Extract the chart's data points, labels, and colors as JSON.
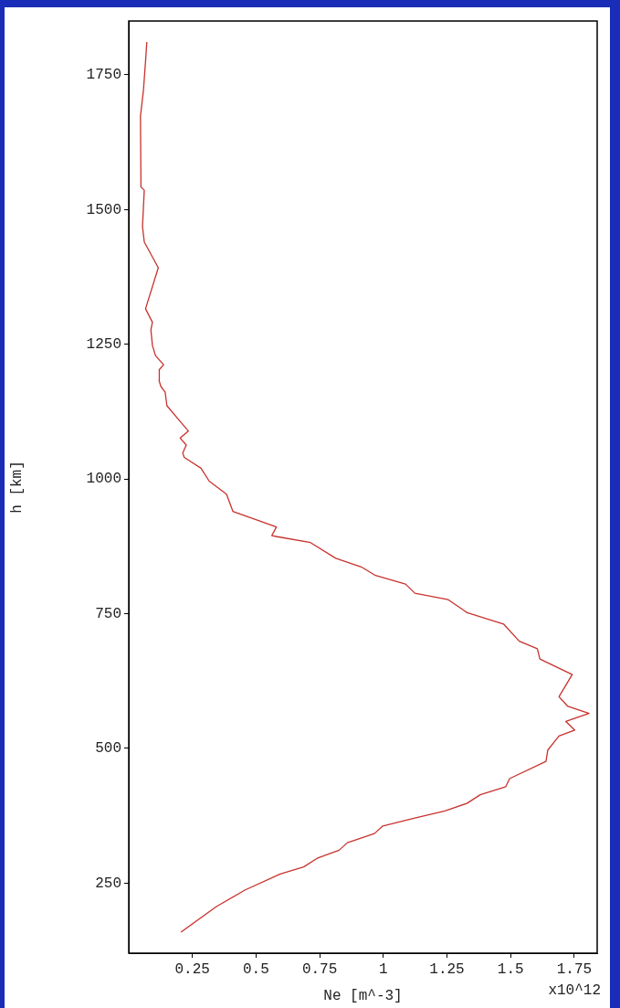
{
  "chart_data": {
    "type": "line",
    "xlabel": "Ne [m^-3]",
    "ylabel": "h [km]",
    "annotations": [
      "x10^12"
    ],
    "xlim": [
      0,
      1.84
    ],
    "xticks": [
      {
        "value": 0.25,
        "label": "0.25"
      },
      {
        "value": 0.5,
        "label": "0.5"
      },
      {
        "value": 0.75,
        "label": "0.75"
      },
      1,
      {
        "value": 1.25,
        "label": "1.25"
      },
      {
        "value": 1.5,
        "label": "1.5"
      },
      {
        "value": 1.75,
        "label": "1.75"
      }
    ],
    "ylim": [
      120,
      1850
    ],
    "yticks": [
      250,
      500,
      750,
      1000,
      1250,
      1500,
      1750
    ],
    "series": [
      {
        "color": "#c8322d",
        "x": [
          0.205,
          0.343,
          0.456,
          0.595,
          0.687,
          0.74,
          0.826,
          0.859,
          0.965,
          0.998,
          1.124,
          1.242,
          1.328,
          1.381,
          1.481,
          1.496,
          1.639,
          1.646,
          1.69,
          1.752,
          1.717,
          1.808,
          1.725,
          1.69,
          1.742,
          1.615,
          1.605,
          1.534,
          1.472,
          1.329,
          1.255,
          1.124,
          1.087,
          0.969,
          0.913,
          0.813,
          0.714,
          0.583,
          0.562,
          0.58,
          0.409,
          0.384,
          0.316,
          0.284,
          0.218,
          0.212,
          0.226,
          0.202,
          0.234,
          0.202,
          0.15,
          0.143,
          0.126,
          0.119,
          0.12,
          0.137,
          0.105,
          0.093,
          0.087,
          0.093,
          0.066,
          0.116,
          0.061,
          0.054,
          0.061,
          0.048,
          0.046,
          0.058,
          0.067,
          0.071
        ],
        "values": [
          159,
          206,
          237,
          267,
          280,
          296,
          311,
          325,
          342,
          356,
          371,
          384,
          398,
          414,
          429,
          444,
          476,
          497,
          523,
          534,
          550,
          565,
          578,
          596,
          637,
          666,
          685,
          699,
          731,
          752,
          776,
          788,
          805,
          821,
          837,
          853,
          882,
          893,
          895,
          911,
          940,
          972,
          996,
          1020,
          1040,
          1048,
          1063,
          1076,
          1089,
          1107,
          1136,
          1161,
          1172,
          1183,
          1203,
          1212,
          1229,
          1248,
          1277,
          1291,
          1316,
          1392,
          1440,
          1469,
          1536,
          1542,
          1673,
          1723,
          1782,
          1811
        ]
      }
    ]
  }
}
